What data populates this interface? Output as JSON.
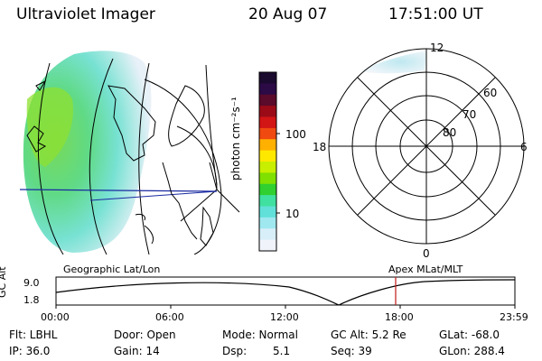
{
  "header": {
    "instrument": "Ultraviolet Imager",
    "date": "20 Aug 07",
    "time": "17:51:00 UT"
  },
  "colorbar": {
    "unit_label": "photon cm⁻²s⁻¹",
    "ticks": [
      "100",
      "10"
    ],
    "colors": [
      "#1a0a2e",
      "#2b0a45",
      "#5a0a2a",
      "#9a0b17",
      "#d21515",
      "#f04a10",
      "#ffb000",
      "#ffe800",
      "#c8ee00",
      "#80e000",
      "#30d030",
      "#40e0a0",
      "#60e0d8",
      "#a0e8f0",
      "#d8eef8",
      "#f0f4fa"
    ]
  },
  "polar": {
    "mlt_labels": {
      "top": "12",
      "left": "18",
      "right": "6",
      "bottom": "0"
    },
    "lat_labels": [
      "60",
      "70",
      "80"
    ]
  },
  "map_labels": {
    "left": "Geographic Lat/Lon",
    "right": "Apex MLat/MLT"
  },
  "timeline": {
    "axis_label": "GC Alt",
    "y_max": "9.0",
    "y_min": "1.8",
    "ticks": [
      "00:00",
      "06:00",
      "12:00",
      "18:00",
      "23:59"
    ],
    "marker_time": "17:51"
  },
  "footer": {
    "flt": "Flt: LBHL",
    "ip": "IP: 36.0",
    "door": "Door: Open",
    "gain": "Gain: 14",
    "mode": "Mode: Normal",
    "dsp_label": "Dsp:",
    "dsp_value": "5.1",
    "gc_alt": "GC Alt: 5.2 Re",
    "seq": "Seq: 39",
    "glat": "GLat: -68.0",
    "glon": "GLon: 288.4"
  }
}
